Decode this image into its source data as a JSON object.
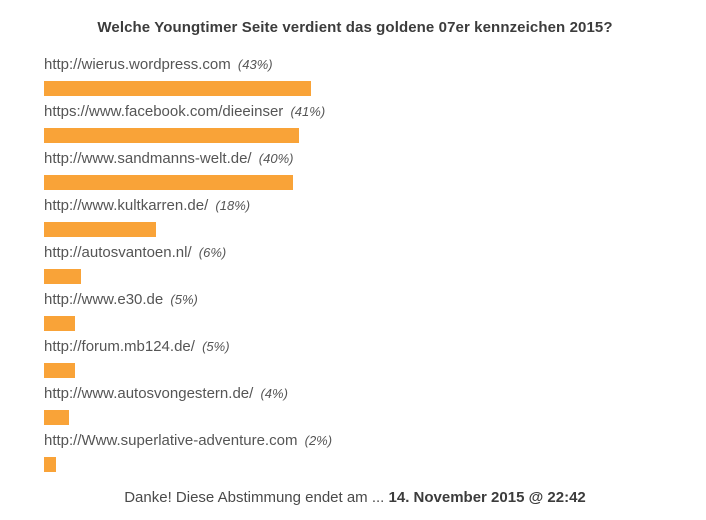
{
  "poll": {
    "title": "Welche Youngtimer Seite verdient das goldene 07er kennzeichen 2015?",
    "options": [
      {
        "label": "http://wierus.wordpress.com",
        "percent_label": "(43%)",
        "percent": 43
      },
      {
        "label": "https://www.facebook.com/dieeinser",
        "percent_label": "(41%)",
        "percent": 41
      },
      {
        "label": "http://www.sandmanns-welt.de/",
        "percent_label": "(40%)",
        "percent": 40
      },
      {
        "label": "http://www.kultkarren.de/",
        "percent_label": "(18%)",
        "percent": 18
      },
      {
        "label": "http://autosvantoen.nl/",
        "percent_label": "(6%)",
        "percent": 6
      },
      {
        "label": "http://www.e30.de",
        "percent_label": "(5%)",
        "percent": 5
      },
      {
        "label": "http://forum.mb124.de/",
        "percent_label": "(5%)",
        "percent": 5
      },
      {
        "label": "http://www.autosvongestern.de/",
        "percent_label": "(4%)",
        "percent": 4
      },
      {
        "label": "http://Www.superlative-adventure.com",
        "percent_label": "(2%)",
        "percent": 2
      }
    ],
    "footer_text": "Danke! Diese Abstimmung endet am ... ",
    "footer_bold": "14. November 2015 @ 22:42",
    "bar_color": "#f9a338"
  },
  "chart_data": {
    "type": "bar",
    "orientation": "horizontal",
    "title": "Welche Youngtimer Seite verdient das goldene 07er kennzeichen 2015?",
    "categories": [
      "http://wierus.wordpress.com",
      "https://www.facebook.com/dieeinser",
      "http://www.sandmanns-welt.de/",
      "http://www.kultkarren.de/",
      "http://autosvantoen.nl/",
      "http://www.e30.de",
      "http://forum.mb124.de/",
      "http://www.autosvongestern.de/",
      "http://Www.superlative-adventure.com"
    ],
    "values": [
      43,
      41,
      40,
      18,
      6,
      5,
      5,
      4,
      2
    ],
    "unit": "%",
    "xlim": [
      0,
      100
    ],
    "bar_color": "#f9a338",
    "grid": false,
    "legend": null,
    "annotation": "Danke! Diese Abstimmung endet am ... 14. November 2015 @ 22:42"
  }
}
